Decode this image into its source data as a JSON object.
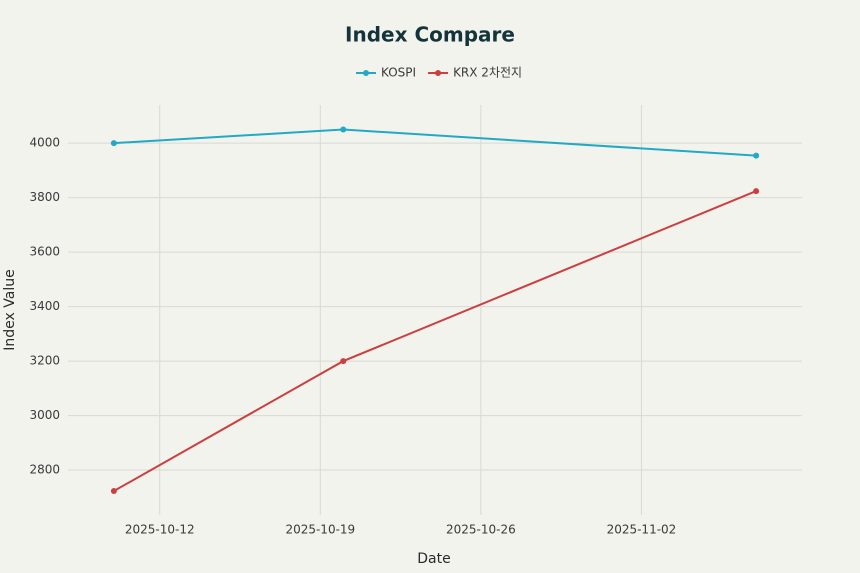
{
  "chart_data": {
    "type": "line",
    "title": "Index Compare",
    "x_label": "Date",
    "y_label": "Index Value",
    "x": [
      "2025-10-10",
      "2025-10-20",
      "2025-11-07"
    ],
    "series": [
      {
        "name": "KOSPI",
        "color": "#21a9c6",
        "values": [
          4000,
          4050,
          3954
        ]
      },
      {
        "name": "KRX 2차전지",
        "color": "#cc3f40",
        "values": [
          2723,
          3200,
          3824
        ]
      }
    ],
    "xlim": [
      "2025-10-08",
      "2025-11-09"
    ],
    "xticks": [
      "2025-10-12",
      "2025-10-19",
      "2025-10-26",
      "2025-11-02"
    ],
    "ylim": [
      2635,
      4140
    ],
    "yticks": [
      2800,
      3000,
      3200,
      3400,
      3600,
      3800,
      4000
    ],
    "grid": true
  }
}
